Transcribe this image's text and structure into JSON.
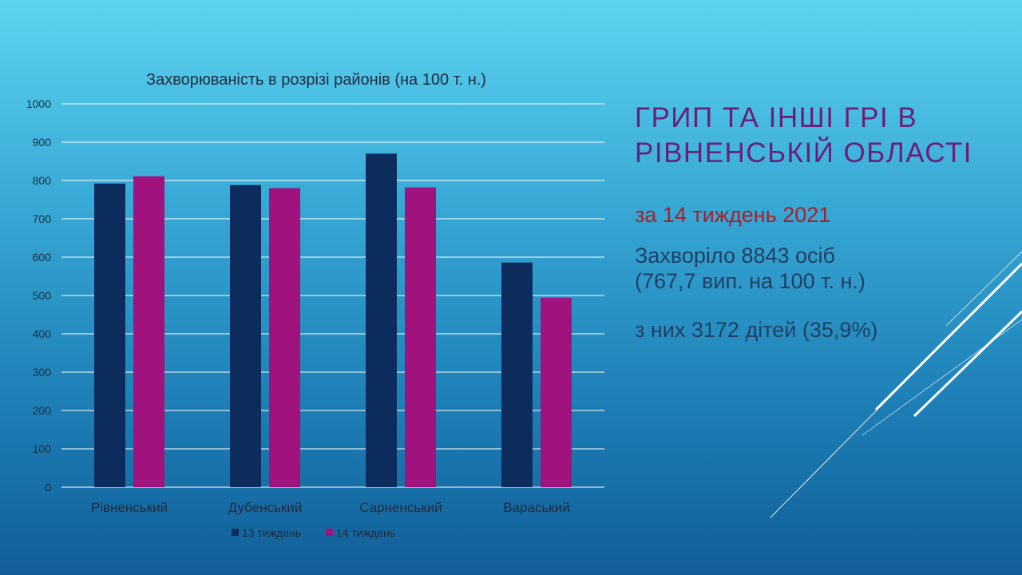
{
  "slide": {
    "title": "Грип та інші ГРІ в Рівненській області",
    "subtitle": "за 14 тиждень 2021",
    "stat_line_1": "Захворіло 8843 осіб",
    "stat_line_2": "(767,7  вип. на 100 т. н.)",
    "stat_line_3": "з них 3172 дітей (35,9%)"
  },
  "colors": {
    "title": "#6b1f7c",
    "subtitle": "#a8202a",
    "body_text": "#1f3f63",
    "series_13": "#0d2c5e",
    "series_14": "#a0137f"
  },
  "chart_data": {
    "type": "bar",
    "title": "Захворюваність в розрізі районів (на 100 т. н.)",
    "categories": [
      "Рівненський",
      "Дубенський",
      "Сарненський",
      "Вараський"
    ],
    "series": [
      {
        "name": "13 тиждень",
        "values": [
          792,
          788,
          870,
          586
        ]
      },
      {
        "name": "14 тиждень",
        "values": [
          811,
          780,
          782,
          494
        ]
      }
    ],
    "ylim": [
      0,
      1000
    ],
    "yticks": [
      0,
      100,
      200,
      300,
      400,
      500,
      600,
      700,
      800,
      900,
      1000
    ],
    "grid": true,
    "legend_position": "bottom"
  }
}
